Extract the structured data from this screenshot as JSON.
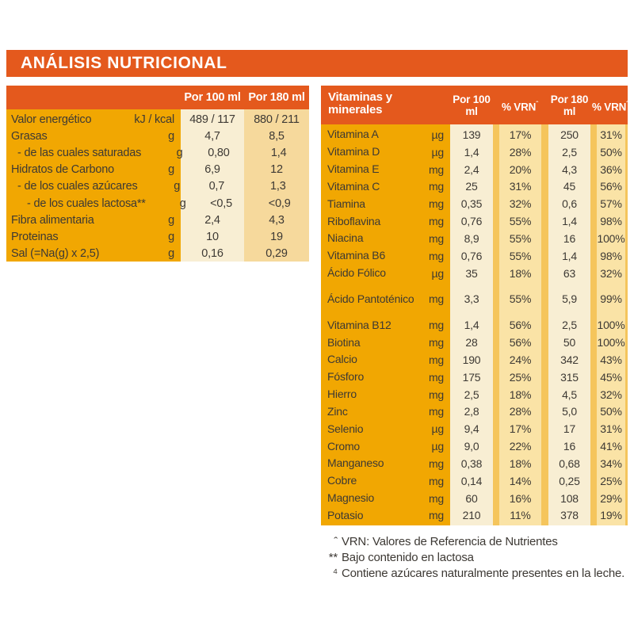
{
  "title": "ANÁLISIS NUTRICIONAL",
  "colors": {
    "accent_orange": "#e4591d",
    "gold": "#f1a702",
    "cream_column": "#f8eed3",
    "tan_column": "#f6d99c",
    "yellow_column": "#fae3a6",
    "gap_gold": "#f5c55c",
    "text": "#3d3934",
    "header_text": "#ffffff"
  },
  "left_table": {
    "col_100": "Por 100 ml",
    "col_180": "Por 180 ml",
    "rows": [
      {
        "label": "Valor energético",
        "unit": "kJ / kcal",
        "v100": "489 / 117",
        "v180": "880 / 211",
        "indent": 0
      },
      {
        "label": "Grasas",
        "unit": "g",
        "v100": "4,7",
        "v180": "8,5",
        "indent": 0
      },
      {
        "label": "- de las cuales saturadas",
        "unit": "g",
        "v100": "0,80",
        "v180": "1,4",
        "indent": 1
      },
      {
        "label": "Hidratos de Carbono",
        "unit": "g",
        "v100": "6,9",
        "v180": "12",
        "indent": 0
      },
      {
        "label": "- de los cuales azúcares",
        "unit": "g",
        "v100": "0,7",
        "v180": "1,3",
        "indent": 1
      },
      {
        "label": "- de los cuales lactosa**",
        "unit": "g",
        "v100": "<0,5",
        "v180": "<0,9",
        "indent": 2
      },
      {
        "label": "Fibra alimentaria",
        "unit": "g",
        "v100": "2,4",
        "v180": "4,3",
        "indent": 0
      },
      {
        "label": "Proteinas",
        "unit": "g",
        "v100": "10",
        "v180": "19",
        "indent": 0
      },
      {
        "label": "Sal (=Na(g) x 2,5)",
        "unit": "g",
        "v100": "0,16",
        "v180": "0,29",
        "indent": 0
      }
    ]
  },
  "right_table": {
    "title": "Vitaminas y minerales",
    "col_100": "Por 100 ml",
    "col_180": "Por 180 ml",
    "vrn_label": "% VRN",
    "vrn_sup": "ˆ",
    "rows": [
      {
        "label": "Vitamina A",
        "unit": "µg",
        "v100": "139",
        "p100": "17%",
        "v180": "250",
        "p180": "31%",
        "tall": false
      },
      {
        "label": "Vitamina D",
        "unit": "µg",
        "v100": "1,4",
        "p100": "28%",
        "v180": "2,5",
        "p180": "50%",
        "tall": false
      },
      {
        "label": "Vitamina E",
        "unit": "mg",
        "v100": "2,4",
        "p100": "20%",
        "v180": "4,3",
        "p180": "36%",
        "tall": false
      },
      {
        "label": "Vitamina C",
        "unit": "mg",
        "v100": "25",
        "p100": "31%",
        "v180": "45",
        "p180": "56%",
        "tall": false
      },
      {
        "label": "Tiamina",
        "unit": "mg",
        "v100": "0,35",
        "p100": "32%",
        "v180": "0,6",
        "p180": "57%",
        "tall": false
      },
      {
        "label": "Riboflavina",
        "unit": "mg",
        "v100": "0,76",
        "p100": "55%",
        "v180": "1,4",
        "p180": "98%",
        "tall": false
      },
      {
        "label": "Niacina",
        "unit": "mg",
        "v100": "8,9",
        "p100": "55%",
        "v180": "16",
        "p180": "100%",
        "tall": false
      },
      {
        "label": "Vitamina B6",
        "unit": "mg",
        "v100": "0,76",
        "p100": "55%",
        "v180": "1,4",
        "p180": "98%",
        "tall": false
      },
      {
        "label": "Ácido Fólico",
        "unit": "µg",
        "v100": "35",
        "p100": "18%",
        "v180": "63",
        "p180": "32%",
        "tall": false
      },
      {
        "label": "Ácido Pantoténico",
        "unit": "mg",
        "v100": "3,3",
        "p100": "55%",
        "v180": "5,9",
        "p180": "99%",
        "tall": true
      },
      {
        "label": "Vitamina B12",
        "unit": "mg",
        "v100": "1,4",
        "p100": "56%",
        "v180": "2,5",
        "p180": "100%",
        "tall": false
      },
      {
        "label": "Biotina",
        "unit": "mg",
        "v100": "28",
        "p100": "56%",
        "v180": "50",
        "p180": "100%",
        "tall": false
      },
      {
        "label": "Calcio",
        "unit": "mg",
        "v100": "190",
        "p100": "24%",
        "v180": "342",
        "p180": "43%",
        "tall": false
      },
      {
        "label": "Fósforo",
        "unit": "mg",
        "v100": "175",
        "p100": "25%",
        "v180": "315",
        "p180": "45%",
        "tall": false
      },
      {
        "label": "Hierro",
        "unit": "mg",
        "v100": "2,5",
        "p100": "18%",
        "v180": "4,5",
        "p180": "32%",
        "tall": false
      },
      {
        "label": "Zinc",
        "unit": "mg",
        "v100": "2,8",
        "p100": "28%",
        "v180": "5,0",
        "p180": "50%",
        "tall": false
      },
      {
        "label": "Selenio",
        "unit": "µg",
        "v100": "9,4",
        "p100": "17%",
        "v180": "17",
        "p180": "31%",
        "tall": false
      },
      {
        "label": "Cromo",
        "unit": "µg",
        "v100": "9,0",
        "p100": "22%",
        "v180": "16",
        "p180": "41%",
        "tall": false
      },
      {
        "label": "Manganeso",
        "unit": "mg",
        "v100": "0,38",
        "p100": "18%",
        "v180": "0,68",
        "p180": "34%",
        "tall": false
      },
      {
        "label": "Cobre",
        "unit": "mg",
        "v100": "0,14",
        "p100": "14%",
        "v180": "0,25",
        "p180": "25%",
        "tall": false
      },
      {
        "label": "Magnesio",
        "unit": "mg",
        "v100": "60",
        "p100": "16%",
        "v180": "108",
        "p180": "29%",
        "tall": false
      },
      {
        "label": "Potasio",
        "unit": "mg",
        "v100": "210",
        "p100": "11%",
        "v180": "378",
        "p180": "19%",
        "tall": false
      }
    ]
  },
  "footnotes": [
    {
      "marker": "ˆ",
      "text": "VRN: Valores de Referencia de Nutrientes"
    },
    {
      "marker": "**",
      "text": "Bajo contenido en lactosa"
    },
    {
      "marker": "⁴",
      "text": "Contiene azúcares naturalmente presentes en la leche."
    }
  ]
}
